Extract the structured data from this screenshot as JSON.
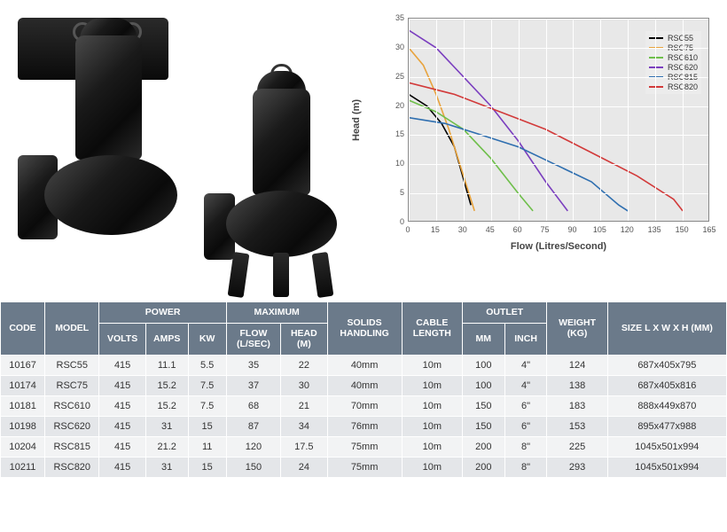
{
  "chart": {
    "type": "line",
    "x_axis_title": "Flow (Litres/Second)",
    "y_axis_title": "Head (m)",
    "xlim": [
      0,
      165
    ],
    "ylim": [
      0,
      35
    ],
    "x_ticks": [
      0,
      15,
      30,
      45,
      60,
      75,
      90,
      105,
      120,
      135,
      150,
      165
    ],
    "y_ticks": [
      0,
      5,
      10,
      15,
      20,
      25,
      30,
      35
    ],
    "background_color": "#e8e8e8",
    "grid_color": "#ffffff",
    "axis_color": "#888888",
    "label_fontsize": 9,
    "title_fontsize": 11,
    "line_width": 1.6,
    "series": [
      {
        "name": "RSC55",
        "color": "#000000",
        "points": [
          [
            0,
            22
          ],
          [
            10,
            20
          ],
          [
            18,
            17
          ],
          [
            25,
            13
          ],
          [
            34,
            3
          ]
        ]
      },
      {
        "name": "RSC75",
        "color": "#e8a33d",
        "points": [
          [
            0,
            30
          ],
          [
            8,
            27
          ],
          [
            15,
            22
          ],
          [
            22,
            16
          ],
          [
            30,
            8
          ],
          [
            36,
            2
          ]
        ]
      },
      {
        "name": "RSC610",
        "color": "#6fbf4b",
        "points": [
          [
            0,
            21
          ],
          [
            15,
            19
          ],
          [
            30,
            16
          ],
          [
            45,
            11
          ],
          [
            60,
            5
          ],
          [
            68,
            2
          ]
        ]
      },
      {
        "name": "RSC620",
        "color": "#7b3fbf",
        "points": [
          [
            0,
            33
          ],
          [
            15,
            30
          ],
          [
            30,
            25
          ],
          [
            45,
            20
          ],
          [
            60,
            14
          ],
          [
            75,
            7
          ],
          [
            87,
            2
          ]
        ]
      },
      {
        "name": "RSC815",
        "color": "#2f6fb0",
        "points": [
          [
            0,
            18
          ],
          [
            20,
            17
          ],
          [
            40,
            15
          ],
          [
            60,
            13
          ],
          [
            80,
            10
          ],
          [
            100,
            7
          ],
          [
            115,
            3
          ],
          [
            120,
            2
          ]
        ]
      },
      {
        "name": "RSC820",
        "color": "#d23a3a",
        "points": [
          [
            0,
            24
          ],
          [
            25,
            22
          ],
          [
            50,
            19
          ],
          [
            75,
            16
          ],
          [
            100,
            12
          ],
          [
            125,
            8
          ],
          [
            145,
            4
          ],
          [
            150,
            2
          ]
        ]
      }
    ]
  },
  "table": {
    "header_bg": "#6b7a8a",
    "header_color": "#ffffff",
    "row_bg_odd": "#f2f3f4",
    "row_bg_even": "#e4e6e9",
    "groups": {
      "code": "CODE",
      "model": "MODEL",
      "power": "POWER",
      "maximum": "MAXIMUM",
      "solids": "SOLIDS HANDLING",
      "cable": "CABLE LENGTH",
      "outlet": "OUTLET",
      "weight": "WEIGHT (KG)",
      "size": "SIZE\nL X W X H\n(MM)"
    },
    "subheaders": {
      "volts": "VOLTS",
      "amps": "AMPS",
      "kw": "KW",
      "flow": "FLOW (L/SEC)",
      "head": "HEAD (M)",
      "mm": "MM",
      "inch": "INCH"
    },
    "rows": [
      {
        "code": "10167",
        "model": "RSC55",
        "volts": "415",
        "amps": "11.1",
        "kw": "5.5",
        "flow": "35",
        "head": "22",
        "solids": "40mm",
        "cable": "10m",
        "mm": "100",
        "inch": "4\"",
        "weight": "124",
        "size": "687x405x795"
      },
      {
        "code": "10174",
        "model": "RSC75",
        "volts": "415",
        "amps": "15.2",
        "kw": "7.5",
        "flow": "37",
        "head": "30",
        "solids": "40mm",
        "cable": "10m",
        "mm": "100",
        "inch": "4\"",
        "weight": "138",
        "size": "687x405x816"
      },
      {
        "code": "10181",
        "model": "RSC610",
        "volts": "415",
        "amps": "15.2",
        "kw": "7.5",
        "flow": "68",
        "head": "21",
        "solids": "70mm",
        "cable": "10m",
        "mm": "150",
        "inch": "6\"",
        "weight": "183",
        "size": "888x449x870"
      },
      {
        "code": "10198",
        "model": "RSC620",
        "volts": "415",
        "amps": "31",
        "kw": "15",
        "flow": "87",
        "head": "34",
        "solids": "76mm",
        "cable": "10m",
        "mm": "150",
        "inch": "6\"",
        "weight": "153",
        "size": "895x477x988"
      },
      {
        "code": "10204",
        "model": "RSC815",
        "volts": "415",
        "amps": "21.2",
        "kw": "11",
        "flow": "120",
        "head": "17.5",
        "solids": "75mm",
        "cable": "10m",
        "mm": "200",
        "inch": "8\"",
        "weight": "225",
        "size": "1045x501x994"
      },
      {
        "code": "10211",
        "model": "RSC820",
        "volts": "415",
        "amps": "31",
        "kw": "15",
        "flow": "150",
        "head": "24",
        "solids": "75mm",
        "cable": "10m",
        "mm": "200",
        "inch": "8\"",
        "weight": "293",
        "size": "1045x501x994"
      }
    ]
  }
}
